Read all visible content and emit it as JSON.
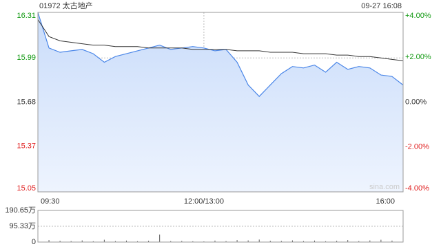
{
  "chart_data": [
    {
      "type": "line",
      "title": "01972 太古地产",
      "subtitle": "09-27 16:08",
      "watermark": "sina.com",
      "x": [
        0,
        10,
        20,
        30,
        40,
        50,
        60,
        70,
        80,
        90,
        100,
        110,
        120,
        130,
        140,
        150,
        160,
        170,
        180,
        190,
        200,
        210,
        220,
        230,
        240,
        250,
        260,
        270,
        280,
        290,
        300,
        310,
        320,
        330
      ],
      "series": [
        {
          "color": "#4a86e8",
          "values": [
            16.31,
            16.06,
            16.03,
            16.04,
            16.05,
            16.02,
            15.96,
            16.0,
            16.02,
            16.04,
            16.06,
            16.08,
            16.05,
            16.06,
            16.07,
            16.06,
            16.04,
            16.05,
            15.96,
            15.8,
            15.72,
            15.8,
            15.88,
            15.93,
            15.92,
            15.94,
            15.89,
            15.96,
            15.91,
            15.93,
            15.92,
            15.87,
            15.86,
            15.8
          ]
        },
        {
          "color": "#333333",
          "values": [
            16.26,
            16.14,
            16.11,
            16.1,
            16.09,
            16.08,
            16.08,
            16.07,
            16.07,
            16.07,
            16.06,
            16.06,
            16.06,
            16.06,
            16.05,
            16.05,
            16.05,
            16.05,
            16.04,
            16.04,
            16.04,
            16.03,
            16.03,
            16.03,
            16.02,
            16.02,
            16.02,
            16.01,
            16.01,
            16.0,
            16.0,
            15.99,
            15.98,
            15.97
          ]
        }
      ],
      "xlim": [
        0,
        330
      ],
      "xticks": [
        {
          "value": 0,
          "label": "09:30"
        },
        {
          "value": 150,
          "label": "12:00/13:00"
        },
        {
          "value": 330,
          "label": "16:00"
        }
      ],
      "ylim": [
        15.05,
        16.31
      ],
      "yticks": [
        16.31,
        15.99,
        15.68,
        15.37,
        15.05
      ],
      "y2lim": [
        -4,
        4
      ],
      "y2ticks": [
        {
          "value": 4,
          "label": "+4.00%"
        },
        {
          "value": 2,
          "label": "+2.00%"
        },
        {
          "value": 0,
          "label": "0.00%"
        },
        {
          "value": -2,
          "label": "-2.00%"
        },
        {
          "value": -4,
          "label": "-4.00%"
        }
      ],
      "up_color": "#119911",
      "down_color": "#e02020",
      "flat_color": "#333333",
      "grid": true
    },
    {
      "type": "bar",
      "color": "#555555",
      "x": [
        0,
        10,
        20,
        30,
        40,
        50,
        60,
        70,
        80,
        90,
        100,
        110,
        120,
        130,
        140,
        150,
        160,
        170,
        180,
        190,
        200,
        210,
        220,
        230,
        240,
        250,
        260,
        270,
        280,
        290,
        300,
        310,
        320,
        330
      ],
      "values": [
        40,
        12,
        8,
        6,
        10,
        5,
        14,
        6,
        9,
        5,
        8,
        45,
        6,
        7,
        5,
        4,
        9,
        6,
        12,
        10,
        15,
        8,
        7,
        10,
        6,
        9,
        5,
        8,
        12,
        6,
        10,
        14,
        9,
        18
      ],
      "xlim": [
        0,
        330
      ],
      "ylim": [
        0,
        190.65
      ],
      "yticks": [
        {
          "value": 190.65,
          "label": "190.65万"
        },
        {
          "value": 95.33,
          "label": "95.33万"
        },
        0
      ]
    }
  ]
}
